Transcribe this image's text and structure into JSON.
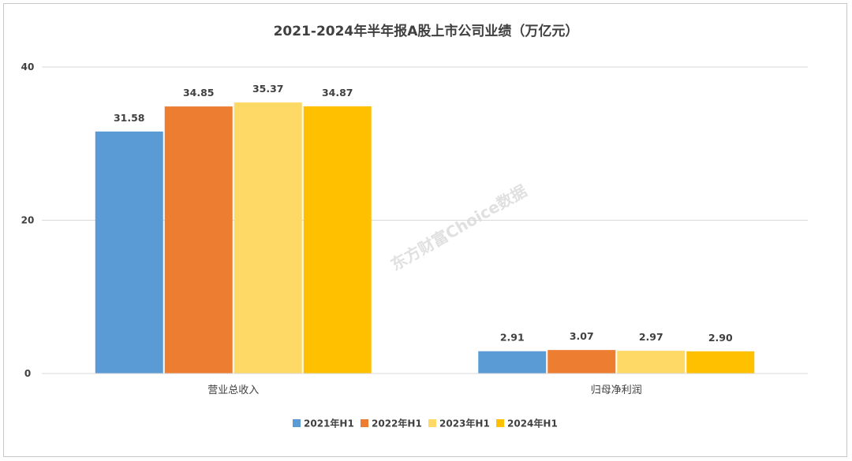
{
  "chart_data": {
    "type": "bar",
    "title": "2021-2024年半年报A股上市公司业绩（万亿元）",
    "categories": [
      "营业总收入",
      "归母净利润"
    ],
    "series": [
      {
        "name": "2021年H1",
        "color": "#5b9bd5",
        "values": [
          31.58,
          2.91
        ],
        "labels": [
          "31.58",
          "2.91"
        ]
      },
      {
        "name": "2022年H1",
        "color": "#ed7d31",
        "values": [
          34.85,
          3.07
        ],
        "labels": [
          "34.85",
          "3.07"
        ]
      },
      {
        "name": "2023年H1",
        "color": "#ffd966",
        "values": [
          35.37,
          2.97
        ],
        "labels": [
          "35.37",
          "2.97"
        ]
      },
      {
        "name": "2024年H1",
        "color": "#ffc000",
        "values": [
          34.87,
          2.9
        ],
        "labels": [
          "34.87",
          "2.90"
        ]
      }
    ],
    "yticks": [
      "0",
      "20",
      "40"
    ],
    "ytick_values": [
      0,
      20,
      40
    ],
    "ylim": [
      0,
      40
    ],
    "grid": true,
    "legend_position": "bottom",
    "watermark": "东方财富Choice数据"
  }
}
